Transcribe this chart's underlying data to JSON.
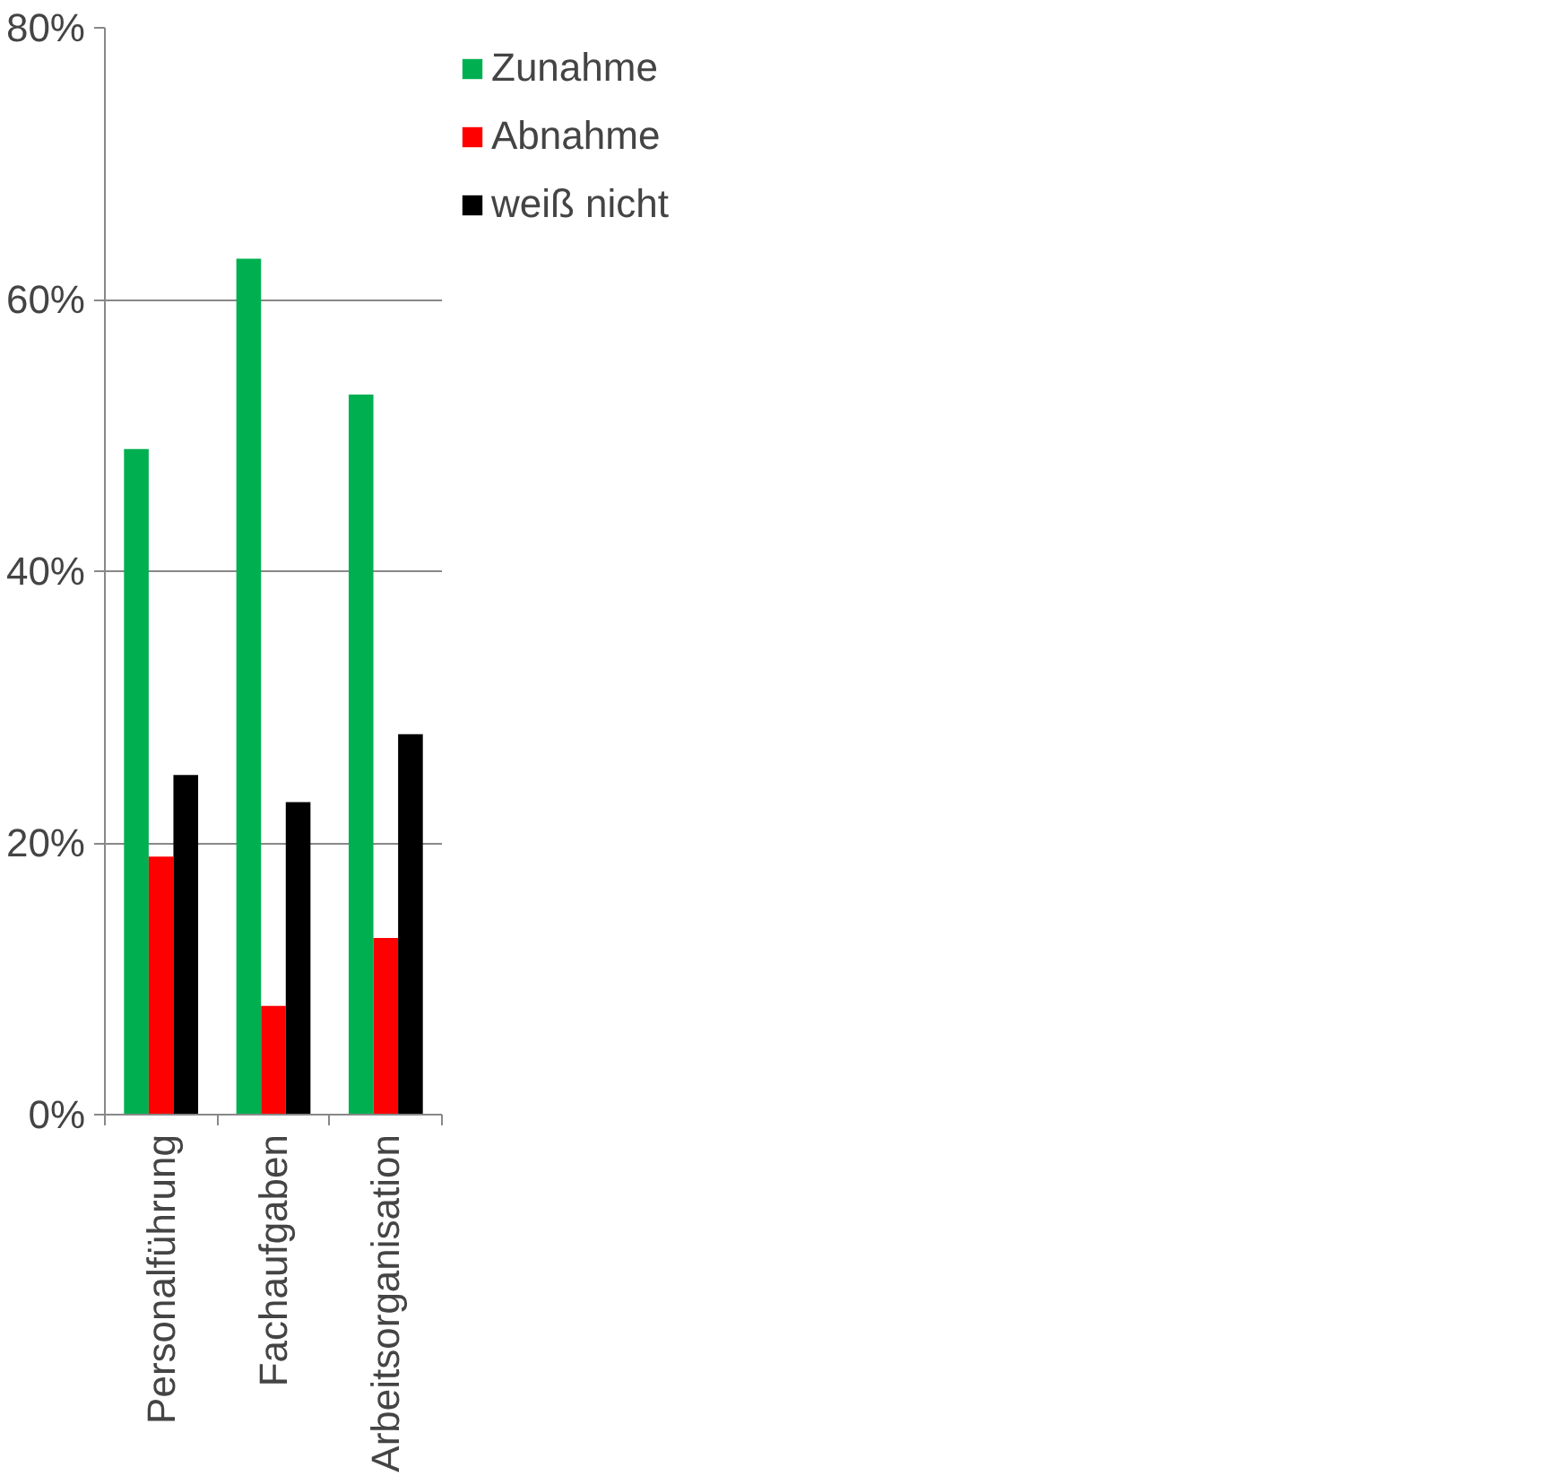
{
  "chart_data": {
    "type": "bar",
    "categories": [
      "Personalführung",
      "Fachaufgaben",
      "Arbeitsorganisation"
    ],
    "series": [
      {
        "name": "Zunahme",
        "color": "#00b050",
        "values": [
          49,
          63,
          53
        ]
      },
      {
        "name": "Abnahme",
        "color": "#ff0000",
        "values": [
          19,
          8,
          13
        ]
      },
      {
        "name": "weiß nicht",
        "color": "#000000",
        "values": [
          25,
          23,
          28
        ]
      }
    ],
    "ylim": [
      0,
      80
    ],
    "yticks": [
      {
        "value": 0,
        "label": "0%"
      },
      {
        "value": 20,
        "label": "20%"
      },
      {
        "value": 40,
        "label": "40%"
      },
      {
        "value": 60,
        "label": "60%"
      },
      {
        "value": 80,
        "label": "80%"
      }
    ],
    "grid": "y",
    "legend": "top right"
  }
}
